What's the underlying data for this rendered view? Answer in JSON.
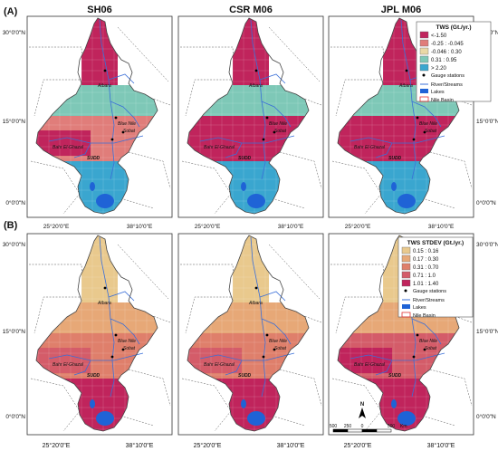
{
  "panels": {
    "top": {
      "letter": "(A)"
    },
    "bottom": {
      "letter": "(B)"
    }
  },
  "columns": [
    "SH06",
    "CSR M06",
    "JPL M06"
  ],
  "graticule": {
    "lon_labels": [
      "25°20'0\"E",
      "38°10'0\"E"
    ],
    "lat_labels": [
      "30°0'0\"N",
      "15°0'0\"N",
      "0°0'0\"N"
    ]
  },
  "place_labels": [
    "Atbara",
    "Blue Nile",
    "Bahr El-Ghazal",
    "Sobat",
    "SUDD",
    "Lake"
  ],
  "legend_top": {
    "title": "TWS (Gt./yr.)",
    "items": [
      {
        "label": "<-1.50",
        "color": "#c0245c"
      },
      {
        "label": "-0.25 : -0.045",
        "color": "#e07d7a"
      },
      {
        "label": "-0.046 : 0.30",
        "color": "#e9d8a6"
      },
      {
        "label": "0.31 : 0.95",
        "color": "#7ec8b7"
      },
      {
        "label": "> 2.20",
        "color": "#3aa6cf"
      }
    ],
    "gauge": "Gauge stations",
    "rivers": "River/Streams",
    "lakes": "Lakes",
    "basin": "Nile Basin"
  },
  "legend_bottom": {
    "title": "TWS STDEV (Gt./yr.)",
    "items": [
      {
        "label": "0.15 : 0.16",
        "color": "#e9c98d"
      },
      {
        "label": "0.17 : 0.30",
        "color": "#e7a877"
      },
      {
        "label": "0.31 : 0.70",
        "color": "#df7f6b"
      },
      {
        "label": "0.71 : 1.0",
        "color": "#d45c69"
      },
      {
        "label": "1.01 : 1.40",
        "color": "#c0245c"
      }
    ],
    "gauge": "Gauge stations",
    "rivers": "River/Streams",
    "lakes": "Lakes",
    "basin": "Nile Basin"
  },
  "scale_bar": {
    "labels": [
      "500",
      "250",
      "0",
      "500"
    ],
    "unit": "Km",
    "north": "N"
  },
  "colors": {
    "lake": "#1f63d6",
    "river": "#3a6fd8",
    "basin_outline": "#e03030",
    "country": "#555555"
  }
}
